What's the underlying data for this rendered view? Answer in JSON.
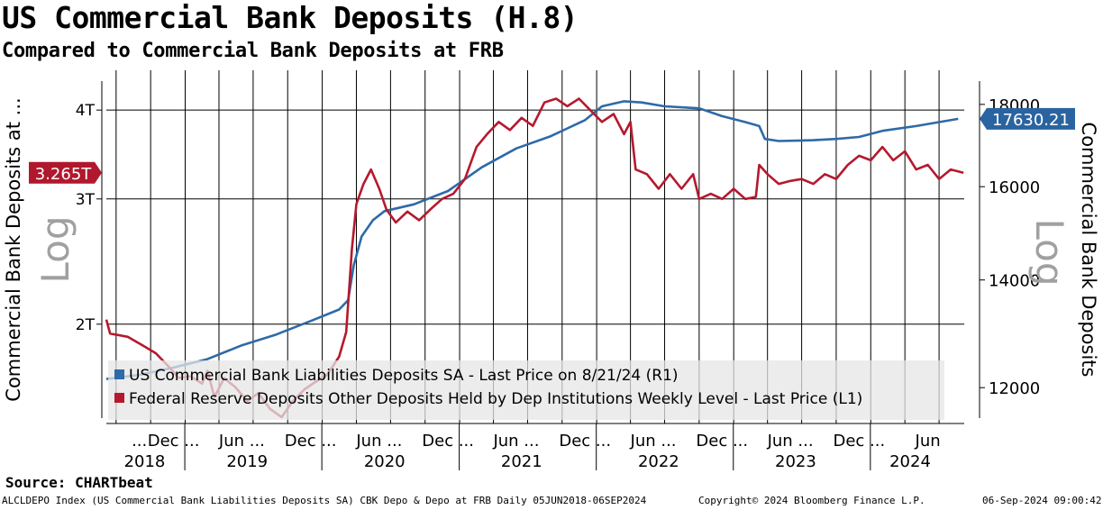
{
  "header": {
    "title": "US Commercial Bank Deposits (H.8)",
    "subtitle": "Compared to Commercial Bank Deposits at FRB"
  },
  "footer": {
    "source": "Source: CHARTbeat",
    "left": "ALCLDEPO Index (US Commercial Bank Liabilities Deposits SA) CBK Depo & Depo at FRB  Daily 05JUN2018-06SEP2024",
    "center": "Copyright© 2024 Bloomberg Finance L.P.",
    "right": "06-Sep-2024 09:00:42"
  },
  "colors": {
    "blue": "#2e6aa7",
    "red": "#b5192e",
    "blue_badge": "#2a64a0",
    "red_badge": "#b0182d"
  },
  "chart_data": {
    "type": "line",
    "left_axis": {
      "label": "Commercial Bank Deposits at ...",
      "scale_note": "Log",
      "ticks": [
        "2T",
        "3T",
        "4T"
      ],
      "tick_values": [
        2.0,
        3.0,
        4.0
      ],
      "range": [
        1.45,
        4.55
      ],
      "scale": "log"
    },
    "right_axis": {
      "label": "Commercial Bank Deposits",
      "scale_note": "Log",
      "ticks": [
        "12000",
        "14000",
        "16000",
        "18000"
      ],
      "tick_values": [
        12000,
        14000,
        16000,
        18000
      ],
      "range": [
        11400,
        18900
      ],
      "scale": "log"
    },
    "x_axis": {
      "range": [
        "2018-06-05",
        "2024-09-06"
      ],
      "month_labels": [
        {
          "date": "2018-09-01",
          "text": "..."
        },
        {
          "date": "2018-12-01",
          "text": "Dec ..."
        },
        {
          "date": "2019-06-01",
          "text": "Jun ..."
        },
        {
          "date": "2019-12-01",
          "text": "Dec ..."
        },
        {
          "date": "2020-06-01",
          "text": "Jun ..."
        },
        {
          "date": "2020-12-01",
          "text": "Dec ..."
        },
        {
          "date": "2021-06-01",
          "text": "Jun ..."
        },
        {
          "date": "2021-12-01",
          "text": "Dec ..."
        },
        {
          "date": "2022-06-01",
          "text": "Jun ..."
        },
        {
          "date": "2022-12-01",
          "text": "Dec ..."
        },
        {
          "date": "2023-06-01",
          "text": "Jun ..."
        },
        {
          "date": "2023-12-01",
          "text": "Dec ..."
        },
        {
          "date": "2024-06-01",
          "text": "Jun"
        }
      ],
      "year_labels": [
        {
          "date": "2018-09-15",
          "text": "2018"
        },
        {
          "date": "2019-06-15",
          "text": "2019"
        },
        {
          "date": "2020-06-15",
          "text": "2020"
        },
        {
          "date": "2021-06-15",
          "text": "2021"
        },
        {
          "date": "2022-06-15",
          "text": "2022"
        },
        {
          "date": "2023-06-15",
          "text": "2023"
        },
        {
          "date": "2024-04-15",
          "text": "2024"
        }
      ],
      "year_separators": [
        "2018-12-31",
        "2019-12-31",
        "2020-12-31",
        "2021-12-31",
        "2022-12-31",
        "2023-12-31"
      ],
      "grid_lines": [
        "2018-07-01",
        "2018-10-01",
        "2019-01-01",
        "2019-04-01",
        "2019-07-01",
        "2019-10-01",
        "2020-01-01",
        "2020-04-01",
        "2020-07-01",
        "2020-10-01",
        "2021-01-01",
        "2021-04-01",
        "2021-07-01",
        "2021-10-01",
        "2022-01-01",
        "2022-04-01",
        "2022-07-01",
        "2022-10-01",
        "2023-01-01",
        "2023-04-01",
        "2023-07-01",
        "2023-10-01",
        "2024-01-01",
        "2024-04-01",
        "2024-07-01"
      ]
    },
    "grid": true,
    "legend": "bottom-left",
    "series": [
      {
        "name": "US Commercial Bank Liabilities Deposits SA - Last Price on 8/21/24 (R1)",
        "axis": "right",
        "color": "#2e6aa7",
        "last_value_label": "17630.21",
        "points": [
          [
            "2018-06-05",
            12150
          ],
          [
            "2018-09-01",
            12220
          ],
          [
            "2018-12-01",
            12350
          ],
          [
            "2019-03-01",
            12500
          ],
          [
            "2019-06-01",
            12750
          ],
          [
            "2019-09-01",
            12950
          ],
          [
            "2019-12-01",
            13200
          ],
          [
            "2020-02-15",
            13420
          ],
          [
            "2020-03-10",
            13600
          ],
          [
            "2020-03-25",
            14300
          ],
          [
            "2020-04-15",
            14900
          ],
          [
            "2020-05-15",
            15250
          ],
          [
            "2020-06-15",
            15450
          ],
          [
            "2020-09-01",
            15600
          ],
          [
            "2020-12-01",
            15900
          ],
          [
            "2021-03-01",
            16450
          ],
          [
            "2021-06-01",
            16900
          ],
          [
            "2021-09-01",
            17200
          ],
          [
            "2021-12-01",
            17600
          ],
          [
            "2022-01-15",
            17950
          ],
          [
            "2022-03-15",
            18080
          ],
          [
            "2022-05-01",
            18050
          ],
          [
            "2022-07-01",
            17950
          ],
          [
            "2022-10-01",
            17900
          ],
          [
            "2022-12-01",
            17700
          ],
          [
            "2023-02-01",
            17550
          ],
          [
            "2023-03-10",
            17450
          ],
          [
            "2023-03-25",
            17130
          ],
          [
            "2023-05-01",
            17080
          ],
          [
            "2023-08-01",
            17100
          ],
          [
            "2023-10-01",
            17130
          ],
          [
            "2023-12-01",
            17180
          ],
          [
            "2024-02-01",
            17330
          ],
          [
            "2024-05-01",
            17450
          ],
          [
            "2024-08-21",
            17630
          ]
        ]
      },
      {
        "name": "Federal Reserve Deposits Other Deposits Held by Dep Institutions Weekly Level - Last Price (L1)",
        "axis": "left",
        "color": "#b5192e",
        "last_value_label": "3.265T",
        "points": [
          [
            "2018-06-05",
            2.03
          ],
          [
            "2018-06-15",
            1.94
          ],
          [
            "2018-08-01",
            1.92
          ],
          [
            "2018-09-15",
            1.86
          ],
          [
            "2018-10-15",
            1.82
          ],
          [
            "2018-11-15",
            1.75
          ],
          [
            "2018-12-15",
            1.68
          ],
          [
            "2019-01-15",
            1.69
          ],
          [
            "2019-02-15",
            1.65
          ],
          [
            "2019-03-01",
            1.72
          ],
          [
            "2019-03-20",
            1.58
          ],
          [
            "2019-04-15",
            1.68
          ],
          [
            "2019-05-15",
            1.63
          ],
          [
            "2019-06-15",
            1.56
          ],
          [
            "2019-07-15",
            1.6
          ],
          [
            "2019-08-15",
            1.52
          ],
          [
            "2019-09-15",
            1.48
          ],
          [
            "2019-10-15",
            1.56
          ],
          [
            "2019-11-15",
            1.62
          ],
          [
            "2019-12-15",
            1.66
          ],
          [
            "2020-01-15",
            1.7
          ],
          [
            "2020-02-15",
            1.8
          ],
          [
            "2020-03-05",
            1.95
          ],
          [
            "2020-03-20",
            2.55
          ],
          [
            "2020-04-01",
            2.95
          ],
          [
            "2020-04-20",
            3.15
          ],
          [
            "2020-05-10",
            3.3
          ],
          [
            "2020-06-01",
            3.1
          ],
          [
            "2020-06-20",
            2.9
          ],
          [
            "2020-07-15",
            2.78
          ],
          [
            "2020-08-15",
            2.88
          ],
          [
            "2020-09-15",
            2.8
          ],
          [
            "2020-10-15",
            2.9
          ],
          [
            "2020-11-15",
            3.0
          ],
          [
            "2020-12-15",
            3.05
          ],
          [
            "2021-01-15",
            3.2
          ],
          [
            "2021-02-15",
            3.55
          ],
          [
            "2021-03-15",
            3.7
          ],
          [
            "2021-04-15",
            3.85
          ],
          [
            "2021-05-15",
            3.75
          ],
          [
            "2021-06-15",
            3.9
          ],
          [
            "2021-07-15",
            3.8
          ],
          [
            "2021-08-15",
            4.1
          ],
          [
            "2021-09-15",
            4.15
          ],
          [
            "2021-10-15",
            4.05
          ],
          [
            "2021-11-15",
            4.15
          ],
          [
            "2021-12-15",
            4.0
          ],
          [
            "2022-01-15",
            3.85
          ],
          [
            "2022-02-15",
            3.95
          ],
          [
            "2022-03-15",
            3.7
          ],
          [
            "2022-04-01",
            3.85
          ],
          [
            "2022-04-15",
            3.3
          ],
          [
            "2022-05-15",
            3.25
          ],
          [
            "2022-06-15",
            3.1
          ],
          [
            "2022-07-15",
            3.25
          ],
          [
            "2022-08-15",
            3.1
          ],
          [
            "2022-09-15",
            3.25
          ],
          [
            "2022-10-01",
            3.0
          ],
          [
            "2022-11-01",
            3.05
          ],
          [
            "2022-12-01",
            3.0
          ],
          [
            "2023-01-01",
            3.1
          ],
          [
            "2023-02-01",
            3.0
          ],
          [
            "2023-03-01",
            3.02
          ],
          [
            "2023-03-10",
            3.35
          ],
          [
            "2023-04-01",
            3.25
          ],
          [
            "2023-05-01",
            3.15
          ],
          [
            "2023-06-01",
            3.18
          ],
          [
            "2023-07-01",
            3.2
          ],
          [
            "2023-08-01",
            3.15
          ],
          [
            "2023-09-01",
            3.25
          ],
          [
            "2023-10-01",
            3.2
          ],
          [
            "2023-11-01",
            3.35
          ],
          [
            "2023-12-01",
            3.45
          ],
          [
            "2024-01-01",
            3.4
          ],
          [
            "2024-02-01",
            3.55
          ],
          [
            "2024-03-01",
            3.4
          ],
          [
            "2024-04-01",
            3.5
          ],
          [
            "2024-05-01",
            3.3
          ],
          [
            "2024-06-01",
            3.35
          ],
          [
            "2024-07-01",
            3.2
          ],
          [
            "2024-08-01",
            3.3
          ],
          [
            "2024-09-04",
            3.265
          ]
        ]
      }
    ]
  }
}
